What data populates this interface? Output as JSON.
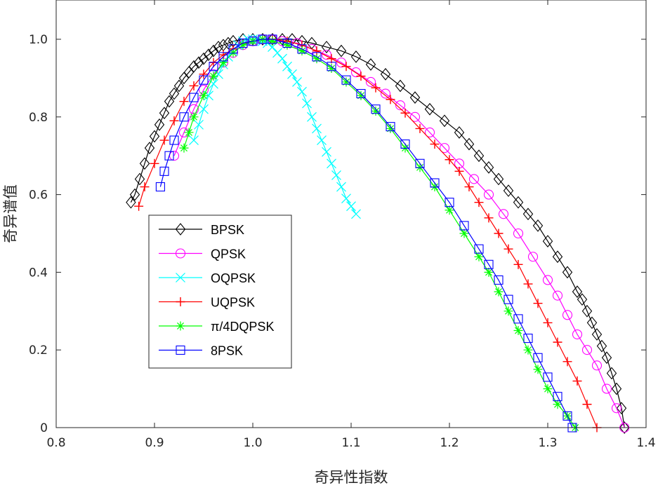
{
  "chart_data": {
    "type": "line",
    "title": "",
    "xlabel": "奇异性指数",
    "ylabel": "奇异谱值",
    "xlim": [
      0.8,
      1.4
    ],
    "ylim": [
      0,
      1.1
    ],
    "xticks": [
      "0.8",
      "0.9",
      "1.0",
      "1.1",
      "1.2",
      "1.3",
      "1.4"
    ],
    "yticks": [
      "0",
      "0.2",
      "0.4",
      "0.6",
      "0.8",
      "1.0"
    ],
    "grid": false,
    "legend_position": "center-left",
    "series": [
      {
        "name": "BPSK",
        "color": "#000000",
        "marker": "diamond",
        "x": [
          0.876,
          0.88,
          0.885,
          0.89,
          0.895,
          0.9,
          0.905,
          0.91,
          0.915,
          0.92,
          0.925,
          0.93,
          0.935,
          0.94,
          0.945,
          0.95,
          0.955,
          0.96,
          0.965,
          0.97,
          0.975,
          0.98,
          0.99,
          1.0,
          1.01,
          1.02,
          1.03,
          1.04,
          1.05,
          1.06,
          1.075,
          1.09,
          1.105,
          1.12,
          1.135,
          1.15,
          1.165,
          1.18,
          1.195,
          1.21,
          1.22,
          1.23,
          1.24,
          1.25,
          1.26,
          1.27,
          1.28,
          1.29,
          1.3,
          1.31,
          1.32,
          1.33,
          1.335,
          1.34,
          1.345,
          1.35,
          1.355,
          1.36,
          1.365,
          1.37,
          1.375,
          1.378
        ],
        "y": [
          0.58,
          0.6,
          0.64,
          0.68,
          0.72,
          0.75,
          0.78,
          0.81,
          0.84,
          0.86,
          0.88,
          0.9,
          0.915,
          0.93,
          0.94,
          0.95,
          0.96,
          0.97,
          0.98,
          0.985,
          0.99,
          0.995,
          1.0,
          1.0,
          1.0,
          1.0,
          1.0,
          1.0,
          0.995,
          0.99,
          0.98,
          0.97,
          0.955,
          0.935,
          0.91,
          0.88,
          0.85,
          0.82,
          0.79,
          0.76,
          0.73,
          0.7,
          0.67,
          0.64,
          0.61,
          0.58,
          0.55,
          0.52,
          0.48,
          0.44,
          0.4,
          0.35,
          0.33,
          0.3,
          0.27,
          0.24,
          0.21,
          0.18,
          0.14,
          0.1,
          0.05,
          0.0
        ]
      },
      {
        "name": "QPSK",
        "color": "#ff00ff",
        "marker": "circle",
        "x": [
          0.92,
          0.93,
          0.94,
          0.95,
          0.96,
          0.97,
          0.98,
          0.99,
          1.0,
          1.01,
          1.02,
          1.03,
          1.045,
          1.06,
          1.075,
          1.09,
          1.105,
          1.12,
          1.135,
          1.15,
          1.165,
          1.18,
          1.195,
          1.21,
          1.225,
          1.24,
          1.255,
          1.27,
          1.285,
          1.3,
          1.31,
          1.32,
          1.33,
          1.34,
          1.35,
          1.36,
          1.37,
          1.378
        ],
        "y": [
          0.7,
          0.76,
          0.82,
          0.87,
          0.91,
          0.94,
          0.965,
          0.985,
          0.995,
          1.0,
          1.0,
          0.995,
          0.99,
          0.975,
          0.96,
          0.94,
          0.915,
          0.89,
          0.86,
          0.83,
          0.8,
          0.76,
          0.72,
          0.68,
          0.64,
          0.6,
          0.55,
          0.5,
          0.44,
          0.38,
          0.34,
          0.29,
          0.24,
          0.2,
          0.16,
          0.1,
          0.05,
          0.0
        ]
      },
      {
        "name": "OQPSK",
        "color": "#00ffff",
        "marker": "x",
        "x": [
          0.94,
          0.945,
          0.95,
          0.955,
          0.96,
          0.965,
          0.97,
          0.975,
          0.98,
          0.985,
          0.99,
          0.995,
          1.0,
          1.005,
          1.01,
          1.015,
          1.02,
          1.025,
          1.03,
          1.035,
          1.04,
          1.045,
          1.05,
          1.055,
          1.06,
          1.065,
          1.07,
          1.075,
          1.08,
          1.085,
          1.09,
          1.095,
          1.1,
          1.105
        ],
        "y": [
          0.74,
          0.78,
          0.82,
          0.855,
          0.885,
          0.91,
          0.935,
          0.955,
          0.97,
          0.985,
          0.995,
          1.0,
          1.0,
          1.0,
          0.995,
          0.99,
          0.98,
          0.965,
          0.95,
          0.93,
          0.91,
          0.89,
          0.865,
          0.835,
          0.8,
          0.77,
          0.74,
          0.71,
          0.68,
          0.65,
          0.62,
          0.59,
          0.57,
          0.55
        ]
      },
      {
        "name": "UQPSK",
        "color": "#ff0000",
        "marker": "plus",
        "x": [
          0.884,
          0.89,
          0.9,
          0.91,
          0.92,
          0.93,
          0.94,
          0.95,
          0.96,
          0.97,
          0.98,
          0.99,
          1.0,
          1.01,
          1.02,
          1.035,
          1.05,
          1.065,
          1.08,
          1.095,
          1.11,
          1.125,
          1.14,
          1.155,
          1.17,
          1.185,
          1.2,
          1.21,
          1.22,
          1.23,
          1.24,
          1.25,
          1.26,
          1.27,
          1.28,
          1.29,
          1.3,
          1.31,
          1.32,
          1.33,
          1.34,
          1.35
        ],
        "y": [
          0.57,
          0.62,
          0.68,
          0.74,
          0.79,
          0.84,
          0.88,
          0.91,
          0.94,
          0.96,
          0.975,
          0.99,
          0.995,
          1.0,
          1.0,
          0.995,
          0.985,
          0.97,
          0.95,
          0.93,
          0.905,
          0.875,
          0.845,
          0.81,
          0.77,
          0.73,
          0.69,
          0.66,
          0.62,
          0.58,
          0.54,
          0.5,
          0.46,
          0.42,
          0.37,
          0.32,
          0.27,
          0.22,
          0.17,
          0.12,
          0.06,
          0.0
        ]
      },
      {
        "name": "π/4DQPSK",
        "color": "#00ff00",
        "marker": "asterisk",
        "x": [
          0.93,
          0.935,
          0.94,
          0.95,
          0.96,
          0.97,
          0.98,
          0.99,
          1.0,
          1.01,
          1.02,
          1.035,
          1.05,
          1.065,
          1.08,
          1.095,
          1.11,
          1.125,
          1.14,
          1.155,
          1.17,
          1.185,
          1.2,
          1.215,
          1.23,
          1.24,
          1.25,
          1.26,
          1.27,
          1.28,
          1.29,
          1.3,
          1.31,
          1.32,
          1.328
        ],
        "y": [
          0.72,
          0.76,
          0.8,
          0.855,
          0.905,
          0.94,
          0.965,
          0.985,
          0.995,
          1.0,
          0.995,
          0.985,
          0.97,
          0.95,
          0.925,
          0.89,
          0.855,
          0.815,
          0.77,
          0.72,
          0.67,
          0.62,
          0.56,
          0.5,
          0.44,
          0.4,
          0.35,
          0.3,
          0.25,
          0.2,
          0.15,
          0.1,
          0.06,
          0.03,
          0.0
        ]
      },
      {
        "name": "8PSK",
        "color": "#0000ff",
        "marker": "square",
        "x": [
          0.906,
          0.91,
          0.915,
          0.92,
          0.93,
          0.94,
          0.95,
          0.96,
          0.97,
          0.98,
          0.99,
          1.0,
          1.01,
          1.02,
          1.035,
          1.05,
          1.065,
          1.08,
          1.095,
          1.11,
          1.125,
          1.14,
          1.155,
          1.17,
          1.185,
          1.2,
          1.215,
          1.23,
          1.24,
          1.25,
          1.26,
          1.27,
          1.28,
          1.29,
          1.3,
          1.31,
          1.32,
          1.325
        ],
        "y": [
          0.62,
          0.66,
          0.7,
          0.74,
          0.8,
          0.85,
          0.895,
          0.93,
          0.955,
          0.975,
          0.99,
          0.995,
          1.0,
          1.0,
          0.99,
          0.975,
          0.955,
          0.93,
          0.895,
          0.86,
          0.82,
          0.775,
          0.73,
          0.68,
          0.63,
          0.58,
          0.52,
          0.46,
          0.42,
          0.38,
          0.33,
          0.28,
          0.23,
          0.18,
          0.13,
          0.08,
          0.03,
          0.0
        ]
      }
    ]
  }
}
